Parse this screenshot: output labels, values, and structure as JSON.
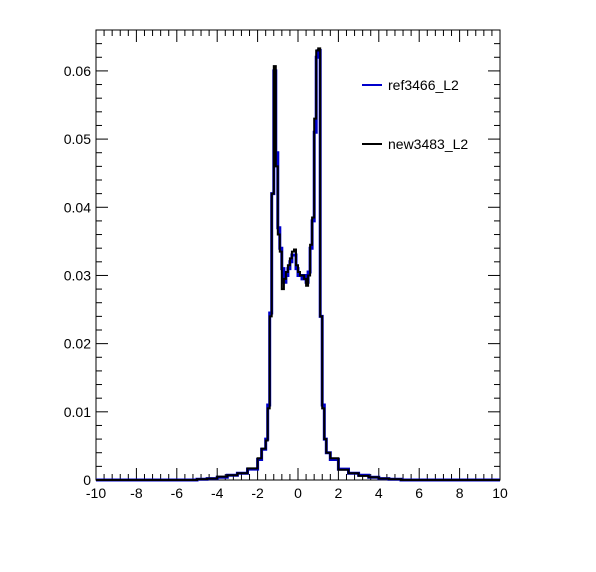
{
  "chart_data": {
    "type": "line",
    "title": "",
    "xlabel": "",
    "ylabel": "",
    "xlim": [
      -10,
      10
    ],
    "ylim": [
      0,
      0.066
    ],
    "x_ticks": [
      -10,
      -8,
      -6,
      -4,
      -2,
      0,
      2,
      4,
      6,
      8,
      10
    ],
    "x_tick_labels": [
      "-10",
      "-8",
      "-6",
      "-4",
      "-2",
      "0",
      "2",
      "4",
      "6",
      "8",
      "10"
    ],
    "y_ticks": [
      0,
      0.01,
      0.02,
      0.03,
      0.04,
      0.05,
      0.06
    ],
    "y_tick_labels": [
      "0",
      "0.01",
      "0.02",
      "0.03",
      "0.04",
      "0.05",
      "0.06"
    ],
    "grid": false,
    "legend_position": "top-right",
    "series": [
      {
        "name": "ref3466_L2",
        "color": "#0000cc",
        "points": [
          [
            -5.0,
            0.0001
          ],
          [
            -4.5,
            0.0002
          ],
          [
            -4.0,
            0.0004
          ],
          [
            -3.5,
            0.0007
          ],
          [
            -3.0,
            0.001
          ],
          [
            -2.5,
            0.0016
          ],
          [
            -2.0,
            0.003
          ],
          [
            -1.8,
            0.0045
          ],
          [
            -1.6,
            0.006
          ],
          [
            -1.5,
            0.011
          ],
          [
            -1.4,
            0.0245
          ],
          [
            -1.3,
            0.042
          ],
          [
            -1.2,
            0.06
          ],
          [
            -1.1,
            0.048
          ],
          [
            -1.0,
            0.037
          ],
          [
            -0.9,
            0.034
          ],
          [
            -0.8,
            0.031
          ],
          [
            -0.7,
            0.029
          ],
          [
            -0.6,
            0.03
          ],
          [
            -0.5,
            0.031
          ],
          [
            -0.4,
            0.032
          ],
          [
            -0.3,
            0.033
          ],
          [
            -0.2,
            0.033
          ],
          [
            -0.1,
            0.031
          ],
          [
            0.0,
            0.03
          ],
          [
            0.1,
            0.03
          ],
          [
            0.2,
            0.0295
          ],
          [
            0.3,
            0.03
          ],
          [
            0.4,
            0.029
          ],
          [
            0.5,
            0.0305
          ],
          [
            0.6,
            0.034
          ],
          [
            0.7,
            0.038
          ],
          [
            0.8,
            0.051
          ],
          [
            0.9,
            0.062
          ],
          [
            1.0,
            0.063
          ],
          [
            1.1,
            0.024
          ],
          [
            1.2,
            0.011
          ],
          [
            1.3,
            0.006
          ],
          [
            1.4,
            0.004
          ],
          [
            1.6,
            0.003
          ],
          [
            2.0,
            0.0016
          ],
          [
            2.5,
            0.001
          ],
          [
            3.0,
            0.0007
          ],
          [
            3.5,
            0.0004
          ],
          [
            4.0,
            0.0002
          ],
          [
            4.5,
            0.0001
          ],
          [
            5.0,
            0.0001
          ]
        ]
      },
      {
        "name": "new3483_L2",
        "color": "#000000",
        "points": [
          [
            -5.0,
            0.0001
          ],
          [
            -4.5,
            0.0002
          ],
          [
            -4.0,
            0.0005
          ],
          [
            -3.5,
            0.0007
          ],
          [
            -3.0,
            0.001
          ],
          [
            -2.5,
            0.0017
          ],
          [
            -2.0,
            0.0032
          ],
          [
            -1.8,
            0.0046
          ],
          [
            -1.6,
            0.0058
          ],
          [
            -1.5,
            0.0105
          ],
          [
            -1.4,
            0.024
          ],
          [
            -1.3,
            0.042
          ],
          [
            -1.2,
            0.0607
          ],
          [
            -1.1,
            0.046
          ],
          [
            -1.0,
            0.036
          ],
          [
            -0.9,
            0.0335
          ],
          [
            -0.8,
            0.028
          ],
          [
            -0.7,
            0.0295
          ],
          [
            -0.6,
            0.0305
          ],
          [
            -0.5,
            0.0315
          ],
          [
            -0.4,
            0.0325
          ],
          [
            -0.3,
            0.0335
          ],
          [
            -0.2,
            0.0338
          ],
          [
            -0.1,
            0.0315
          ],
          [
            0.0,
            0.0305
          ],
          [
            0.1,
            0.03
          ],
          [
            0.2,
            0.03
          ],
          [
            0.3,
            0.0295
          ],
          [
            0.4,
            0.0285
          ],
          [
            0.5,
            0.03
          ],
          [
            0.6,
            0.0345
          ],
          [
            0.7,
            0.0385
          ],
          [
            0.8,
            0.053
          ],
          [
            0.9,
            0.063
          ],
          [
            1.0,
            0.0633
          ],
          [
            1.1,
            0.024
          ],
          [
            1.2,
            0.0105
          ],
          [
            1.3,
            0.006
          ],
          [
            1.4,
            0.004
          ],
          [
            1.6,
            0.0032
          ],
          [
            2.0,
            0.0015
          ],
          [
            2.5,
            0.001
          ],
          [
            3.0,
            0.0006
          ],
          [
            3.5,
            0.0004
          ],
          [
            4.0,
            0.0002
          ],
          [
            4.5,
            0.0001
          ],
          [
            5.0,
            0.0001
          ]
        ]
      }
    ]
  }
}
